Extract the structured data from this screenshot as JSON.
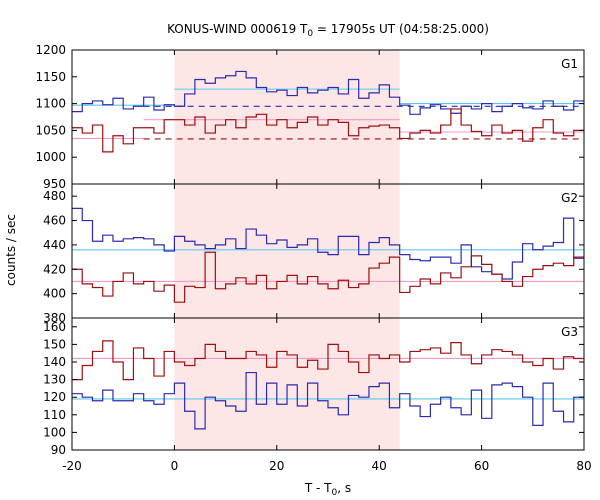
{
  "chart_data": {
    "type": "line",
    "title_main": "KONUS-WIND 000619 T",
    "title_sub": "0",
    "title_rest": " = 17905s UT (04:58:25.000)",
    "xlabel_main": "T - T",
    "xlabel_sub": "0",
    "xlabel_rest": ", s",
    "ylabel": "counts / sec",
    "xlim": [
      -20,
      80
    ],
    "xticks": [
      -20,
      0,
      20,
      40,
      60,
      80
    ],
    "shaded_interval": [
      0,
      44
    ],
    "colors": {
      "blue": "#2b2bb0",
      "darkred": "#9b1010",
      "lightblue": "#5bc8f0",
      "pink": "#f098c8",
      "shade": "#fde6e6"
    },
    "step_x": [
      -20,
      -18,
      -16,
      -14,
      -12,
      -10,
      -8,
      -6,
      -4,
      -2,
      0,
      2,
      4,
      6,
      8,
      10,
      12,
      14,
      16,
      18,
      20,
      22,
      24,
      26,
      28,
      30,
      32,
      34,
      36,
      38,
      40,
      42,
      44,
      46,
      48,
      50,
      52,
      54,
      56,
      58,
      60,
      62,
      64,
      66,
      68,
      70,
      72,
      74,
      76,
      78,
      80
    ],
    "panels": [
      {
        "label": "G1",
        "ylim": [
          950,
          1200
        ],
        "yticks": [
          950,
          1000,
          1050,
          1100,
          1150,
          1200
        ],
        "series": [
          {
            "color": "blue",
            "values": [
              1085,
              1100,
              1105,
              1098,
              1110,
              1090,
              1095,
              1112,
              1088,
              1098,
              1095,
              1118,
              1145,
              1138,
              1148,
              1152,
              1160,
              1148,
              1130,
              1122,
              1125,
              1115,
              1130,
              1120,
              1125,
              1130,
              1118,
              1145,
              1110,
              1120,
              1135,
              1112,
              1097,
              1080,
              1092,
              1098,
              1090,
              1082,
              1095,
              1090,
              1100,
              1085,
              1095,
              1100,
              1092,
              1090,
              1105,
              1095,
              1088,
              1105
            ]
          },
          {
            "color": "darkred",
            "values": [
              1055,
              1045,
              1060,
              1010,
              1040,
              1025,
              1055,
              1055,
              1045,
              1070,
              1070,
              1060,
              1075,
              1045,
              1060,
              1070,
              1055,
              1075,
              1080,
              1060,
              1070,
              1055,
              1065,
              1075,
              1060,
              1070,
              1065,
              1040,
              1055,
              1058,
              1060,
              1055,
              1035,
              1045,
              1050,
              1045,
              1060,
              1090,
              1060,
              1048,
              1040,
              1060,
              1045,
              1050,
              1030,
              1055,
              1070,
              1045,
              1040,
              1050
            ]
          }
        ],
        "refs": [
          {
            "color": "lightblue",
            "x": [
              -20,
              0
            ],
            "y": 1097
          },
          {
            "color": "lightblue",
            "x": [
              0,
              44
            ],
            "y": 1127
          },
          {
            "color": "lightblue",
            "x": [
              44,
              80
            ],
            "y": 1100
          },
          {
            "color": "pink",
            "x": [
              -20,
              -6
            ],
            "y": 1035
          },
          {
            "color": "pink",
            "x": [
              -6,
              44
            ],
            "y": 1070
          },
          {
            "color": "pink",
            "x": [
              44,
              80
            ],
            "y": 1047
          },
          {
            "color": "blue",
            "x": [
              -6,
              80
            ],
            "y": 1095,
            "dashed": true
          },
          {
            "color": "darkred",
            "x": [
              -6,
              80
            ],
            "y": 1034,
            "dashed": true
          }
        ]
      },
      {
        "label": "G2",
        "ylim": [
          380,
          490
        ],
        "yticks": [
          380,
          400,
          420,
          440,
          460,
          480
        ],
        "series": [
          {
            "color": "blue",
            "values": [
              470,
              460,
              443,
              448,
              443,
              445,
              446,
              445,
              440,
              435,
              447,
              443,
              440,
              437,
              440,
              445,
              437,
              453,
              448,
              441,
              444,
              438,
              440,
              445,
              434,
              432,
              447,
              447,
              432,
              442,
              446,
              440,
              432,
              428,
              427,
              430,
              430,
              425,
              440,
              422,
              418,
              416,
              412,
              426,
              441,
              436,
              439,
              442,
              462,
              429
            ]
          },
          {
            "color": "darkred",
            "values": [
              420,
              408,
              405,
              398,
              410,
              417,
              408,
              410,
              402,
              407,
              393,
              406,
              405,
              434,
              404,
              408,
              413,
              408,
              415,
              404,
              410,
              415,
              408,
              414,
              408,
              404,
              411,
              405,
              408,
              421,
              425,
              430,
              401,
              406,
              412,
              408,
              417,
              413,
              422,
              431,
              424,
              416,
              410,
              406,
              414,
              420,
              423,
              425,
              423,
              430
            ]
          }
        ],
        "refs": [
          {
            "color": "lightblue",
            "x": [
              -20,
              80
            ],
            "y": 436
          },
          {
            "color": "pink",
            "x": [
              -20,
              80
            ],
            "y": 410
          }
        ]
      },
      {
        "label": "G3",
        "ylim": [
          90,
          165
        ],
        "yticks": [
          90,
          100,
          110,
          120,
          130,
          140,
          150,
          160
        ],
        "series": [
          {
            "color": "blue",
            "values": [
              122,
              120,
              118,
              124,
              118,
              118,
              122,
              118,
              116,
              122,
              128,
              112,
              102,
              120,
              118,
              115,
              112,
              134,
              116,
              128,
              116,
              127,
              115,
              128,
              118,
              114,
              110,
              121,
              120,
              126,
              128,
              114,
              122,
              115,
              109,
              116,
              120,
              114,
              110,
              124,
              108,
              127,
              128,
              126,
              120,
              104,
              128,
              112,
              106,
              120
            ]
          },
          {
            "color": "darkred",
            "values": [
              130,
              138,
              146,
              152,
              140,
              130,
              148,
              142,
              132,
              146,
              140,
              138,
              142,
              150,
              146,
              142,
              142,
              146,
              144,
              137,
              146,
              144,
              137,
              141,
              136,
              150,
              146,
              140,
              134,
              144,
              142,
              144,
              140,
              146,
              147,
              148,
              145,
              151,
              144,
              139,
              144,
              147,
              146,
              144,
              140,
              138,
              142,
              136,
              143,
              142
            ]
          }
        ],
        "refs": [
          {
            "color": "lightblue",
            "x": [
              -20,
              80
            ],
            "y": 119
          },
          {
            "color": "pink",
            "x": [
              -20,
              80
            ],
            "y": 142
          }
        ]
      }
    ]
  }
}
